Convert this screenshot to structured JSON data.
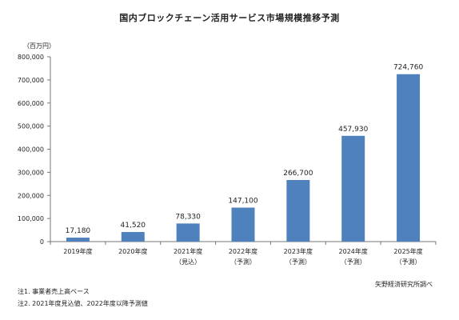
{
  "chart_data": {
    "type": "bar",
    "title": "国内ブロックチェーン活用サービス市場規模推移予測",
    "ylabel": "（百万円）",
    "ylim": [
      0,
      800000
    ],
    "yticks": [
      "0",
      "100,000",
      "200,000",
      "300,000",
      "400,000",
      "500,000",
      "600,000",
      "700,000",
      "800,000"
    ],
    "categories": [
      {
        "label": "2019年度",
        "sub": ""
      },
      {
        "label": "2020年度",
        "sub": ""
      },
      {
        "label": "2021年度",
        "sub": "（見込）"
      },
      {
        "label": "2022年度",
        "sub": "（予測）"
      },
      {
        "label": "2023年度",
        "sub": "（予測）"
      },
      {
        "label": "2024年度",
        "sub": "（予測）"
      },
      {
        "label": "2025年度",
        "sub": "（予測）"
      }
    ],
    "values": [
      17180,
      41520,
      78330,
      147100,
      266700,
      457930,
      724760
    ],
    "value_labels": [
      "17,180",
      "41,520",
      "78,330",
      "147,100",
      "266,700",
      "457,930",
      "724,760"
    ],
    "bar_color": "#4f81bd",
    "grid": false
  },
  "notes": {
    "source": "矢野経済研究所調べ",
    "note1": "注1. 事業者売上高ベース",
    "note2": "注2. 2021年度見込値、2022年度以降予測値"
  }
}
